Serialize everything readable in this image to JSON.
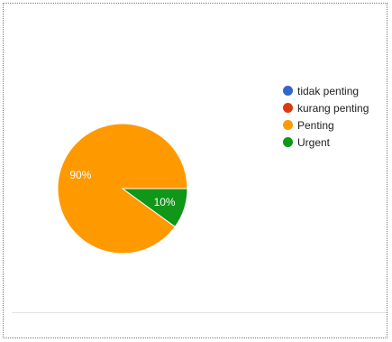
{
  "chart_data": {
    "type": "pie",
    "categories": [
      "tidak penting",
      "kurang penting",
      "Penting",
      "Urgent"
    ],
    "values": [
      0,
      0,
      90,
      10
    ],
    "slice_labels": [
      "",
      "",
      "90%",
      "10%"
    ],
    "colors": [
      "#3366cc",
      "#dc3912",
      "#ff9900",
      "#109618"
    ],
    "legend_position": "right"
  }
}
